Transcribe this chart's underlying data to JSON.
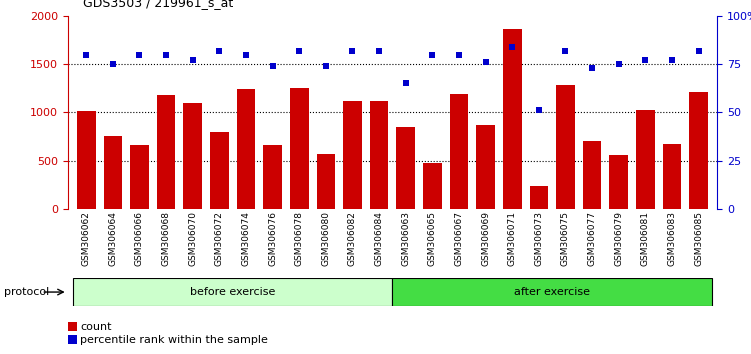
{
  "title": "GDS3503 / 219961_s_at",
  "categories": [
    "GSM306062",
    "GSM306064",
    "GSM306066",
    "GSM306068",
    "GSM306070",
    "GSM306072",
    "GSM306074",
    "GSM306076",
    "GSM306078",
    "GSM306080",
    "GSM306082",
    "GSM306084",
    "GSM306063",
    "GSM306065",
    "GSM306067",
    "GSM306069",
    "GSM306071",
    "GSM306073",
    "GSM306075",
    "GSM306077",
    "GSM306079",
    "GSM306081",
    "GSM306083",
    "GSM306085"
  ],
  "counts": [
    1010,
    760,
    665,
    1180,
    1100,
    800,
    1240,
    660,
    1250,
    570,
    1120,
    1120,
    850,
    480,
    1190,
    870,
    1860,
    240,
    1280,
    700,
    560,
    1020,
    670,
    1210
  ],
  "percentiles": [
    80,
    75,
    80,
    80,
    77,
    82,
    80,
    74,
    82,
    74,
    82,
    82,
    65,
    80,
    80,
    76,
    84,
    51,
    82,
    73,
    75,
    77,
    77,
    82
  ],
  "bar_color": "#cc0000",
  "dot_color": "#0000cc",
  "left_ylim": [
    0,
    2000
  ],
  "right_ylim": [
    0,
    100
  ],
  "left_yticks": [
    0,
    500,
    1000,
    1500,
    2000
  ],
  "right_yticks": [
    0,
    25,
    50,
    75,
    100
  ],
  "right_yticklabels": [
    "0",
    "25",
    "50",
    "75",
    "100%"
  ],
  "before_exercise_count": 12,
  "after_exercise_count": 12,
  "group_label_before": "before exercise",
  "group_label_after": "after exercise",
  "protocol_label": "protocol",
  "legend_count_label": "count",
  "legend_percentile_label": "percentile rank within the sample",
  "background_color": "#ffffff",
  "plot_bg_color": "#ffffff",
  "group_bar_before_color": "#ccffcc",
  "group_bar_after_color": "#44dd44",
  "xtick_bg_color": "#cccccc",
  "gridline_ticks": [
    500,
    1000,
    1500
  ]
}
